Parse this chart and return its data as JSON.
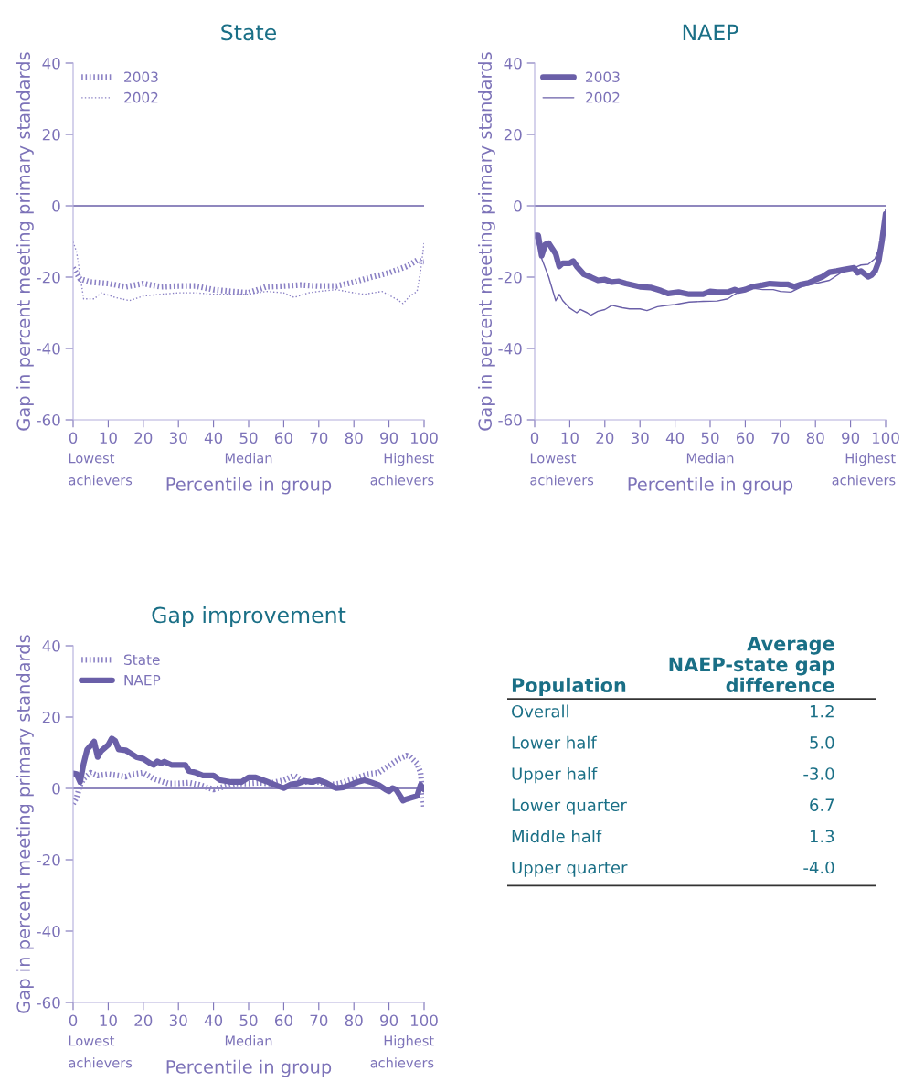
{
  "chart_data": [
    {
      "type": "line",
      "title": "State",
      "xlabel": "Percentile in group",
      "ylabel": "Gap in percent meeting primary standards",
      "xlim": [
        0,
        100
      ],
      "ylim": [
        -60,
        40
      ],
      "xticks": [
        0,
        10,
        20,
        30,
        40,
        50,
        60,
        70,
        80,
        90,
        100
      ],
      "yticks": [
        -60,
        -40,
        -20,
        0,
        20,
        40
      ],
      "grid": false,
      "legend": "top left",
      "ref_lines": [
        {
          "axis": "y",
          "value": 0,
          "color": "#6a5fa8"
        }
      ],
      "annotations": [
        "Lowest\nachievers",
        "Median",
        "Highest\nachievers"
      ],
      "series": [
        {
          "name": "2003",
          "color": "#8a80c4",
          "line_style": "dotted",
          "x": [
            0,
            2,
            5,
            10,
            15,
            20,
            25,
            30,
            35,
            40,
            45,
            50,
            55,
            60,
            65,
            70,
            75,
            80,
            85,
            90,
            95,
            98,
            100
          ],
          "values": [
            -17.4,
            -20.5,
            -21.4,
            -21.8,
            -22.7,
            -21.8,
            -22.7,
            -22.5,
            -22.5,
            -23.5,
            -24,
            -24.4,
            -22.7,
            -22.5,
            -22.2,
            -22.5,
            -22.5,
            -21.4,
            -20,
            -18.8,
            -17,
            -15.3,
            -15.7
          ]
        },
        {
          "name": "2002",
          "color": "#8a80c4",
          "line_style": "dotted",
          "x": [
            0,
            1,
            3,
            6,
            8,
            12,
            16,
            20,
            25,
            30,
            35,
            40,
            45,
            50,
            55,
            60,
            63,
            67,
            70,
            75,
            80,
            83,
            88,
            92,
            94,
            96,
            98,
            99,
            100
          ],
          "values": [
            -10.1,
            -13,
            -26.1,
            -26.1,
            -24.4,
            -25.7,
            -26.6,
            -25.3,
            -24.8,
            -24.4,
            -24.4,
            -24.8,
            -24.8,
            -24.8,
            -24,
            -24.4,
            -25.7,
            -24.4,
            -24,
            -23.5,
            -24.4,
            -24.8,
            -24,
            -26.1,
            -27.4,
            -25.3,
            -24,
            -18.3,
            -10.5
          ]
        }
      ]
    },
    {
      "type": "line",
      "title": "NAEP",
      "xlabel": "Percentile in group",
      "ylabel": "Gap in percent meeting primary standards",
      "xlim": [
        0,
        100
      ],
      "ylim": [
        -60,
        40
      ],
      "xticks": [
        0,
        10,
        20,
        30,
        40,
        50,
        60,
        70,
        80,
        90,
        100
      ],
      "yticks": [
        -60,
        -40,
        -20,
        0,
        20,
        40
      ],
      "grid": false,
      "legend": "top left",
      "ref_lines": [
        {
          "axis": "y",
          "value": 0,
          "color": "#6a5fa8"
        }
      ],
      "annotations": [
        "Lowest\nachievers",
        "Median",
        "Highest\nachievers"
      ],
      "series": [
        {
          "name": "2003",
          "color": "#6a5fa8",
          "line_style": "solid",
          "x": [
            0,
            1,
            2,
            3,
            4,
            6,
            7,
            8,
            10,
            11,
            12,
            14,
            16,
            18,
            20,
            22,
            24,
            26,
            30,
            33,
            36,
            38,
            41,
            44,
            48,
            50,
            52,
            55,
            57,
            58,
            60,
            62,
            65,
            67,
            70,
            72,
            74,
            76,
            78,
            80,
            82,
            84,
            86,
            88,
            91,
            92,
            93,
            95,
            96,
            97,
            98,
            99,
            100
          ],
          "values": [
            -8.3,
            -8.3,
            -14,
            -10.9,
            -10.5,
            -13.5,
            -17,
            -16.1,
            -16.1,
            -15.5,
            -17,
            -19.2,
            -20,
            -20.9,
            -20.7,
            -21.4,
            -21.2,
            -21.8,
            -22.7,
            -22.9,
            -23.8,
            -24.6,
            -24.2,
            -24.8,
            -24.8,
            -24,
            -24.2,
            -24.2,
            -23.5,
            -23.9,
            -23.5,
            -22.7,
            -22.2,
            -21.8,
            -22,
            -22,
            -22.7,
            -22,
            -21.6,
            -20.7,
            -19.9,
            -18.6,
            -18.3,
            -17.9,
            -17.4,
            -18.8,
            -18.3,
            -19.9,
            -19.4,
            -18.3,
            -15.7,
            -9.6,
            -2.3
          ]
        },
        {
          "name": "2002",
          "color": "#6a5fa8",
          "line_style": "solid",
          "x": [
            0,
            1,
            2,
            4,
            6,
            7,
            8,
            10,
            12,
            13,
            15,
            16,
            18,
            20,
            22,
            25,
            27,
            30,
            32,
            35,
            38,
            40,
            44,
            48,
            52,
            55,
            57,
            60,
            62,
            65,
            68,
            70,
            73,
            76,
            80,
            84,
            88,
            91,
            93,
            95,
            97,
            99,
            100
          ],
          "values": [
            -8.3,
            -11.4,
            -14.8,
            -20,
            -26.6,
            -24.8,
            -26.6,
            -28.7,
            -30,
            -29.1,
            -30,
            -30.7,
            -29.6,
            -29.1,
            -27.9,
            -28.6,
            -28.9,
            -28.9,
            -29.4,
            -28.3,
            -27.9,
            -27.7,
            -27,
            -26.8,
            -26.7,
            -26.1,
            -24.8,
            -23.5,
            -23.1,
            -23.5,
            -23.5,
            -24,
            -24.2,
            -22.7,
            -21.8,
            -20.9,
            -18.3,
            -17.4,
            -16.6,
            -16.4,
            -14.8,
            -9.6,
            -1
          ]
        }
      ]
    },
    {
      "type": "line",
      "title": "Gap improvement",
      "xlabel": "Percentile in group",
      "ylabel": "Gap in percent meeting primary standards",
      "xlim": [
        0,
        100
      ],
      "ylim": [
        -60,
        40
      ],
      "xticks": [
        0,
        10,
        20,
        30,
        40,
        50,
        60,
        70,
        80,
        90,
        100
      ],
      "yticks": [
        -60,
        -40,
        -20,
        0,
        20,
        40
      ],
      "grid": false,
      "legend": "top left",
      "ref_lines": [
        {
          "axis": "y",
          "value": 0,
          "color": "#6a5fa8"
        }
      ],
      "annotations": [
        "Lowest\nachievers",
        "Median",
        "Highest\nachievers"
      ],
      "series": [
        {
          "name": "State",
          "color": "#8a80c4",
          "line_style": "dotted",
          "x": [
            0,
            1,
            2,
            3,
            5,
            7,
            10,
            13,
            15,
            17,
            20,
            23,
            27,
            30,
            33,
            36,
            40,
            43,
            46,
            50,
            53,
            56,
            60,
            63,
            66,
            70,
            73,
            76,
            80,
            84,
            87,
            89,
            91,
            93,
            95,
            96,
            98,
            99,
            100
          ],
          "values": [
            -4.3,
            -2.5,
            0.9,
            2.7,
            4.4,
            3.6,
            4,
            3.6,
            3.3,
            4,
            4.4,
            2.7,
            1.4,
            1.4,
            1.6,
            1,
            -0.3,
            0.5,
            1.4,
            1.4,
            1.6,
            1.4,
            2.3,
            3.6,
            1.8,
            1.8,
            1,
            1.4,
            2.7,
            4,
            4.4,
            5.7,
            7,
            8.3,
            9.2,
            8.9,
            7,
            4.4,
            -5.6
          ]
        },
        {
          "name": "NAEP",
          "color": "#6a5fa8",
          "line_style": "solid",
          "x": [
            0,
            1,
            2,
            3,
            4,
            6,
            7,
            8,
            10,
            11,
            12,
            13,
            15,
            18,
            20,
            22,
            23,
            24,
            25,
            26,
            28,
            30,
            32,
            33,
            35,
            37,
            40,
            42,
            45,
            48,
            50,
            52,
            55,
            58,
            60,
            62,
            64,
            66,
            68,
            70,
            72,
            74,
            75,
            77,
            79,
            81,
            83,
            85,
            87,
            89,
            90,
            91,
            92,
            94,
            95,
            96,
            98,
            99,
            100
          ],
          "values": [
            4.2,
            4,
            1.8,
            7,
            10.9,
            13.1,
            8.8,
            10.5,
            12.2,
            14,
            13.3,
            10.9,
            10.7,
            8.8,
            8.3,
            7,
            6.6,
            7.6,
            7,
            7.5,
            6.6,
            6.6,
            6.6,
            4.9,
            4.4,
            3.6,
            3.6,
            2.3,
            1.8,
            1.8,
            3.1,
            3.1,
            2,
            0.8,
            0.1,
            1.1,
            1.4,
            2.1,
            1.8,
            2.3,
            1.6,
            0.5,
            0.1,
            0.3,
            1,
            1.8,
            2.3,
            1.7,
            1,
            -0.3,
            -0.8,
            0.1,
            -0.3,
            -3.4,
            -3,
            -2.7,
            -2.1,
            1,
            -0.3
          ]
        }
      ]
    },
    {
      "type": "other",
      "annotations": [
        "Population",
        "Average\nNAEP-state gap\ndifference"
      ],
      "categories": [
        "Overall",
        "Lower half",
        "Upper half",
        "Lower quarter",
        "Middle half",
        "Upper quarter"
      ],
      "value_labels": [
        "1.2",
        "5.0",
        "-3.0",
        "6.7",
        "1.3",
        "-4.0"
      ]
    }
  ]
}
